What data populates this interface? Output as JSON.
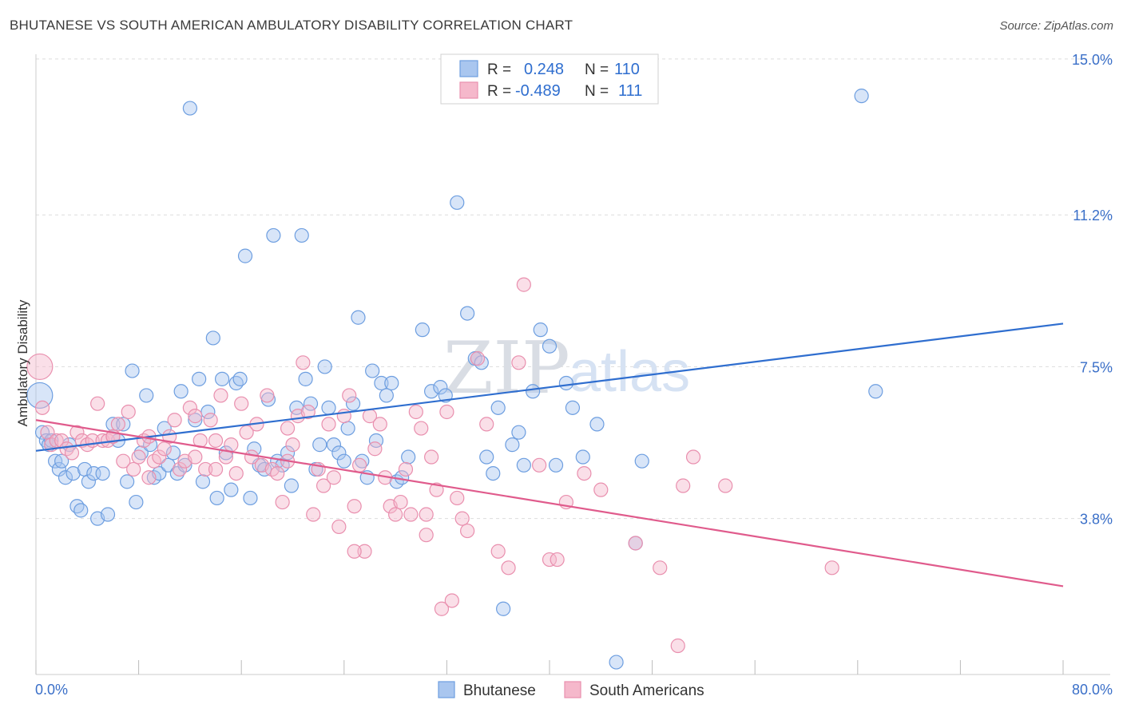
{
  "header": {
    "title": "BHUTANESE VS SOUTH AMERICAN AMBULATORY DISABILITY CORRELATION CHART",
    "source": "Source: ZipAtlas.com"
  },
  "watermark": {
    "zip": "ZIP",
    "atlas": "atlas"
  },
  "colors": {
    "blue": "#2f6ecf",
    "pink": "#e05b8c",
    "blue_fill": "#a9c6ef",
    "pink_fill": "#f5b8cb",
    "tick": "#3a6fc8"
  },
  "chart_data": {
    "type": "scatter",
    "title": "BHUTANESE VS SOUTH AMERICAN AMBULATORY DISABILITY CORRELATION CHART",
    "ylabel": "Ambulatory Disability",
    "xlabel": "",
    "xlim": [
      0,
      80
    ],
    "ylim": [
      0,
      15.5
    ],
    "x_tick_labels": {
      "left": "0.0%",
      "right": "80.0%"
    },
    "y_ticks": [
      {
        "value": 3.8,
        "label": "3.8%"
      },
      {
        "value": 7.5,
        "label": "7.5%"
      },
      {
        "value": 11.2,
        "label": "11.2%"
      },
      {
        "value": 15.0,
        "label": "15.0%"
      }
    ],
    "grid": true,
    "legend_position": "top-center",
    "legend": [
      {
        "r_label": "R =",
        "r_value": "0.248",
        "n_label": "N =",
        "n_value": "110"
      },
      {
        "r_label": "R =",
        "r_value": "-0.489",
        "n_label": "N =",
        "n_value": "111"
      }
    ],
    "bottom_legend": [
      "Bhutanese",
      "South Americans"
    ],
    "series": [
      {
        "name": "Bhutanese",
        "color": "#2f6ecf",
        "trend": {
          "x": [
            0,
            80
          ],
          "y": [
            5.45,
            8.55
          ]
        },
        "points": [
          [
            0.3,
            6.8
          ],
          [
            0.5,
            5.9
          ],
          [
            0.8,
            5.7
          ],
          [
            1.0,
            5.6
          ],
          [
            1.2,
            5.7
          ],
          [
            1.5,
            5.2
          ],
          [
            1.8,
            5.0
          ],
          [
            2.0,
            5.2
          ],
          [
            2.3,
            4.8
          ],
          [
            2.6,
            5.6
          ],
          [
            2.9,
            4.9
          ],
          [
            3.2,
            4.1
          ],
          [
            3.5,
            4.0
          ],
          [
            3.8,
            5.0
          ],
          [
            4.1,
            4.7
          ],
          [
            4.5,
            4.9
          ],
          [
            4.8,
            3.8
          ],
          [
            5.2,
            4.9
          ],
          [
            5.6,
            3.9
          ],
          [
            6.0,
            6.1
          ],
          [
            6.4,
            5.7
          ],
          [
            6.8,
            6.1
          ],
          [
            7.1,
            4.7
          ],
          [
            7.5,
            7.4
          ],
          [
            7.8,
            4.2
          ],
          [
            8.2,
            5.4
          ],
          [
            8.6,
            6.8
          ],
          [
            8.9,
            5.6
          ],
          [
            9.2,
            4.8
          ],
          [
            9.6,
            4.9
          ],
          [
            10.0,
            6.0
          ],
          [
            10.3,
            5.1
          ],
          [
            10.7,
            5.4
          ],
          [
            11.0,
            4.9
          ],
          [
            11.3,
            6.9
          ],
          [
            11.6,
            5.1
          ],
          [
            12.0,
            13.8
          ],
          [
            12.4,
            6.2
          ],
          [
            12.7,
            7.2
          ],
          [
            13.0,
            4.7
          ],
          [
            13.4,
            6.4
          ],
          [
            13.8,
            8.2
          ],
          [
            14.1,
            4.3
          ],
          [
            14.5,
            7.2
          ],
          [
            14.8,
            5.4
          ],
          [
            15.2,
            4.5
          ],
          [
            15.6,
            7.1
          ],
          [
            15.9,
            7.2
          ],
          [
            16.3,
            10.2
          ],
          [
            16.7,
            4.3
          ],
          [
            17.0,
            5.5
          ],
          [
            17.4,
            5.1
          ],
          [
            17.8,
            5.0
          ],
          [
            18.1,
            6.7
          ],
          [
            18.5,
            10.7
          ],
          [
            18.8,
            5.2
          ],
          [
            19.2,
            5.1
          ],
          [
            19.6,
            5.4
          ],
          [
            19.9,
            4.6
          ],
          [
            20.3,
            6.5
          ],
          [
            20.7,
            10.7
          ],
          [
            21.0,
            7.2
          ],
          [
            21.4,
            6.6
          ],
          [
            21.8,
            5.0
          ],
          [
            22.1,
            5.6
          ],
          [
            22.5,
            7.5
          ],
          [
            22.8,
            6.5
          ],
          [
            23.2,
            5.6
          ],
          [
            23.6,
            5.4
          ],
          [
            24.0,
            5.2
          ],
          [
            24.3,
            6.0
          ],
          [
            24.7,
            6.6
          ],
          [
            25.1,
            8.7
          ],
          [
            25.4,
            5.2
          ],
          [
            25.8,
            4.8
          ],
          [
            26.2,
            7.4
          ],
          [
            26.5,
            5.7
          ],
          [
            26.9,
            7.1
          ],
          [
            27.3,
            6.8
          ],
          [
            27.7,
            7.1
          ],
          [
            28.1,
            4.7
          ],
          [
            28.5,
            4.8
          ],
          [
            29.0,
            5.3
          ],
          [
            30.1,
            8.4
          ],
          [
            30.8,
            6.9
          ],
          [
            31.5,
            7.0
          ],
          [
            31.9,
            6.8
          ],
          [
            32.3,
            14.1
          ],
          [
            32.8,
            11.5
          ],
          [
            33.6,
            8.8
          ],
          [
            34.2,
            7.7
          ],
          [
            34.7,
            7.6
          ],
          [
            35.1,
            5.3
          ],
          [
            35.6,
            4.9
          ],
          [
            36.0,
            6.5
          ],
          [
            36.4,
            1.6
          ],
          [
            37.1,
            5.6
          ],
          [
            37.6,
            5.9
          ],
          [
            38.0,
            5.1
          ],
          [
            38.7,
            6.9
          ],
          [
            39.3,
            8.4
          ],
          [
            40.0,
            8.0
          ],
          [
            40.5,
            5.1
          ],
          [
            41.3,
            7.1
          ],
          [
            41.8,
            6.5
          ],
          [
            42.6,
            5.3
          ],
          [
            43.7,
            6.1
          ],
          [
            45.2,
            0.3
          ],
          [
            46.7,
            3.2
          ],
          [
            64.3,
            14.1
          ],
          [
            65.4,
            6.9
          ],
          [
            47.2,
            5.2
          ]
        ]
      },
      {
        "name": "South Americans",
        "color": "#e05b8c",
        "trend": {
          "x": [
            0,
            80
          ],
          "y": [
            6.2,
            2.15
          ]
        },
        "points": [
          [
            0.3,
            7.5
          ],
          [
            0.5,
            6.5
          ],
          [
            0.9,
            5.9
          ],
          [
            1.2,
            5.6
          ],
          [
            1.6,
            5.7
          ],
          [
            2.0,
            5.7
          ],
          [
            2.4,
            5.5
          ],
          [
            2.8,
            5.4
          ],
          [
            3.2,
            5.9
          ],
          [
            3.6,
            5.7
          ],
          [
            4.0,
            5.6
          ],
          [
            4.4,
            5.7
          ],
          [
            4.8,
            6.6
          ],
          [
            5.2,
            5.7
          ],
          [
            5.6,
            5.7
          ],
          [
            6.0,
            5.8
          ],
          [
            6.4,
            6.1
          ],
          [
            6.8,
            5.2
          ],
          [
            7.2,
            6.4
          ],
          [
            7.6,
            5.0
          ],
          [
            8.0,
            5.3
          ],
          [
            8.4,
            5.7
          ],
          [
            8.8,
            4.8
          ],
          [
            9.2,
            5.2
          ],
          [
            9.6,
            5.3
          ],
          [
            10.0,
            5.5
          ],
          [
            10.4,
            5.8
          ],
          [
            10.8,
            6.2
          ],
          [
            11.2,
            5.0
          ],
          [
            11.6,
            5.2
          ],
          [
            12.0,
            6.5
          ],
          [
            12.4,
            5.3
          ],
          [
            12.8,
            5.7
          ],
          [
            13.2,
            5.0
          ],
          [
            13.6,
            6.2
          ],
          [
            14.0,
            5.7
          ],
          [
            14.4,
            6.8
          ],
          [
            14.8,
            5.3
          ],
          [
            15.2,
            5.6
          ],
          [
            15.6,
            4.9
          ],
          [
            16.0,
            6.6
          ],
          [
            16.4,
            5.9
          ],
          [
            16.8,
            5.3
          ],
          [
            17.2,
            6.1
          ],
          [
            17.6,
            5.1
          ],
          [
            18.0,
            6.8
          ],
          [
            18.4,
            5.0
          ],
          [
            18.8,
            4.9
          ],
          [
            19.2,
            4.2
          ],
          [
            19.6,
            6.0
          ],
          [
            20.0,
            5.6
          ],
          [
            20.4,
            6.3
          ],
          [
            20.8,
            7.6
          ],
          [
            21.2,
            6.4
          ],
          [
            21.6,
            3.9
          ],
          [
            22.0,
            5.0
          ],
          [
            22.4,
            4.6
          ],
          [
            22.8,
            6.1
          ],
          [
            23.2,
            4.8
          ],
          [
            23.6,
            3.6
          ],
          [
            24.0,
            6.3
          ],
          [
            24.4,
            6.8
          ],
          [
            24.8,
            4.1
          ],
          [
            25.2,
            5.1
          ],
          [
            25.6,
            3.0
          ],
          [
            26.0,
            6.3
          ],
          [
            26.4,
            5.5
          ],
          [
            26.8,
            6.1
          ],
          [
            27.2,
            4.8
          ],
          [
            27.6,
            4.1
          ],
          [
            28.0,
            3.9
          ],
          [
            28.4,
            4.2
          ],
          [
            28.8,
            5.0
          ],
          [
            29.2,
            3.9
          ],
          [
            29.6,
            6.4
          ],
          [
            30.0,
            6.0
          ],
          [
            30.4,
            3.4
          ],
          [
            30.8,
            5.3
          ],
          [
            31.2,
            4.5
          ],
          [
            31.6,
            1.6
          ],
          [
            32.0,
            6.4
          ],
          [
            32.4,
            1.8
          ],
          [
            32.8,
            4.3
          ],
          [
            33.2,
            3.8
          ],
          [
            33.6,
            3.5
          ],
          [
            34.4,
            7.7
          ],
          [
            35.1,
            6.1
          ],
          [
            36.0,
            3.0
          ],
          [
            36.8,
            2.6
          ],
          [
            37.6,
            7.6
          ],
          [
            38.0,
            9.5
          ],
          [
            39.2,
            5.1
          ],
          [
            40.0,
            2.8
          ],
          [
            40.6,
            2.8
          ],
          [
            41.3,
            4.2
          ],
          [
            42.7,
            4.9
          ],
          [
            50.0,
            0.7
          ],
          [
            50.4,
            4.6
          ],
          [
            51.2,
            5.3
          ],
          [
            30.4,
            3.9
          ],
          [
            24.8,
            3.0
          ],
          [
            19.6,
            5.2
          ],
          [
            14.0,
            5.0
          ],
          [
            12.4,
            6.3
          ],
          [
            8.8,
            5.8
          ],
          [
            6.0,
            5.8
          ],
          [
            46.7,
            3.2
          ],
          [
            48.6,
            2.6
          ],
          [
            62.0,
            2.6
          ],
          [
            44.0,
            4.5
          ],
          [
            53.7,
            4.6
          ]
        ]
      }
    ]
  }
}
